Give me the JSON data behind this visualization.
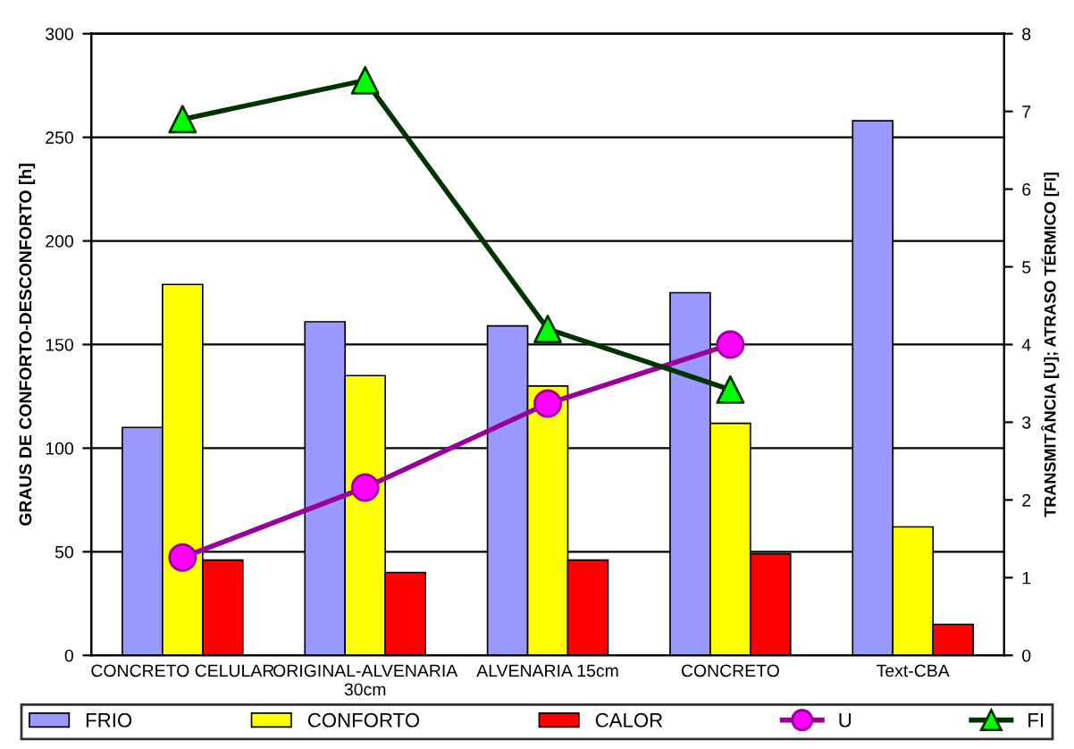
{
  "chart_data": {
    "type": "bar",
    "ylabel": "GRAUS DE CONFORTO-DESCONFORTO [h]",
    "y2label": "TRANSMITÂNCIA [U]; ATRASO TÉRMICO [FI]",
    "categories": [
      "CONCRETO CELULAR",
      "ORIGINAL-ALVENARIA\n30cm",
      "ALVENARIA 15cm",
      "CONCRETO",
      "Text-CBA"
    ],
    "series": [
      {
        "name": "FRIO",
        "color": "#9999ff",
        "values": [
          110,
          161,
          159,
          175,
          258
        ]
      },
      {
        "name": "CONFORTO",
        "color": "#ffff00",
        "values": [
          179,
          135,
          130,
          112,
          62
        ]
      },
      {
        "name": "CALOR",
        "color": "#ff0000",
        "values": [
          46,
          40,
          46,
          49,
          15
        ]
      },
      {
        "name": "U",
        "type": "line",
        "axis": "y2",
        "color": "#990099",
        "marker": "circle",
        "colors": [
          "#ff00ff",
          "#ff00ff",
          "#ff00ff",
          "#ff00ff",
          "#ff00ff"
        ],
        "values": [
          1.26,
          2.16,
          3.24,
          4.0,
          null
        ]
      },
      {
        "name": "FI",
        "type": "line",
        "axis": "y2",
        "color": "#003300",
        "marker": "triangle",
        "colors": [
          "#00ff00",
          "#00ff00",
          "#00ff00",
          "#00ff00",
          "#00ff00"
        ],
        "values": [
          6.9,
          7.4,
          4.2,
          3.42,
          null
        ]
      }
    ],
    "ylim": [
      0,
      300
    ],
    "yticks": [
      0,
      50,
      100,
      150,
      200,
      250,
      300
    ],
    "y2lim": [
      0,
      8
    ],
    "y2ticks": [
      0,
      1,
      2,
      3,
      4,
      5,
      6,
      7,
      8
    ],
    "grid": "y",
    "legend": "bottom"
  }
}
